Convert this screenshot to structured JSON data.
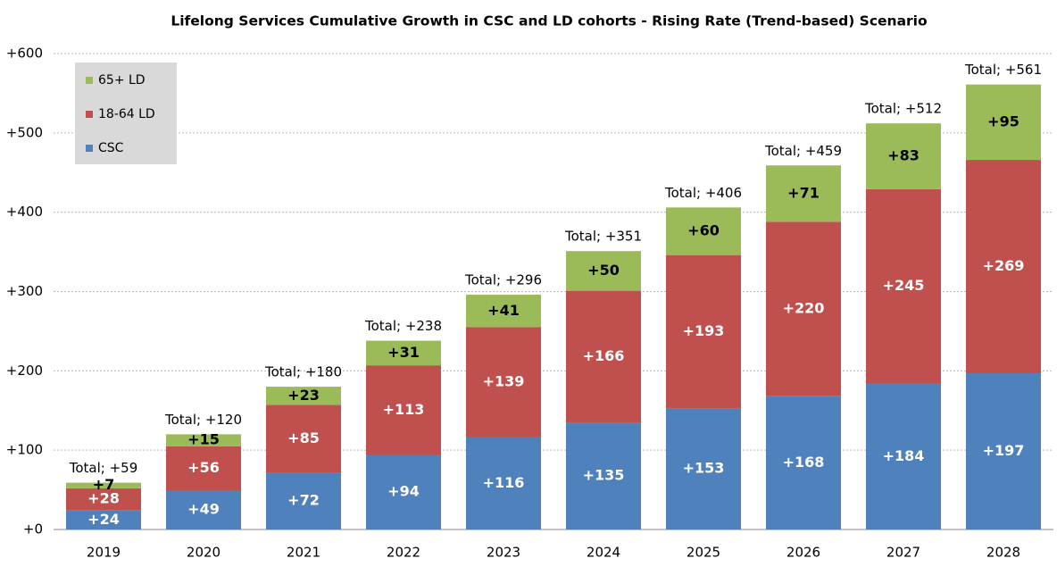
{
  "chart_data": {
    "type": "stacked_bar",
    "title": "Lifelong Services Cumulative Growth in CSC and LD cohorts - Rising Rate (Trend-based) Scenario",
    "categories": [
      "2019",
      "2020",
      "2021",
      "2022",
      "2023",
      "2024",
      "2025",
      "2026",
      "2027",
      "2028"
    ],
    "series": [
      {
        "name": "CSC",
        "color": "#4f81bd",
        "label_color": "#ffffff",
        "values": [
          24,
          49,
          72,
          94,
          116,
          135,
          153,
          168,
          184,
          197
        ],
        "value_labels": [
          "+24",
          "+49",
          "+72",
          "+94",
          "+116",
          "+135",
          "+153",
          "+168",
          "+184",
          "+197"
        ]
      },
      {
        "name": "18-64 LD",
        "color": "#c0504d",
        "label_color": "#ffffff",
        "values": [
          28,
          56,
          85,
          113,
          139,
          166,
          193,
          220,
          245,
          269
        ],
        "value_labels": [
          "+28",
          "+56",
          "+85",
          "+113",
          "+139",
          "+166",
          "+193",
          "+220",
          "+245",
          "+269"
        ]
      },
      {
        "name": "65+ LD",
        "color": "#9bbb59",
        "label_color": "#000000",
        "values": [
          7,
          15,
          23,
          31,
          41,
          50,
          60,
          71,
          83,
          95
        ],
        "value_labels": [
          "+7",
          "+15",
          "+23",
          "+31",
          "+41",
          "+50",
          "+60",
          "+71",
          "+83",
          "+95"
        ]
      }
    ],
    "total_labels": [
      "Total; +59",
      "Total; +120",
      "Total; +180",
      "Total; +238",
      "Total; +296",
      "Total; +351",
      "Total; +406",
      "Total; +459",
      "Total; +512",
      "Total; +561"
    ],
    "ylim": [
      0,
      600
    ],
    "yticks": [
      {
        "value": 0,
        "label": "+0"
      },
      {
        "value": 100,
        "label": "+100"
      },
      {
        "value": 200,
        "label": "+200"
      },
      {
        "value": 300,
        "label": "+300"
      },
      {
        "value": 400,
        "label": "+400"
      },
      {
        "value": 500,
        "label": "+500"
      },
      {
        "value": 600,
        "label": "+600"
      }
    ],
    "grid": true,
    "legend": "top-left"
  }
}
